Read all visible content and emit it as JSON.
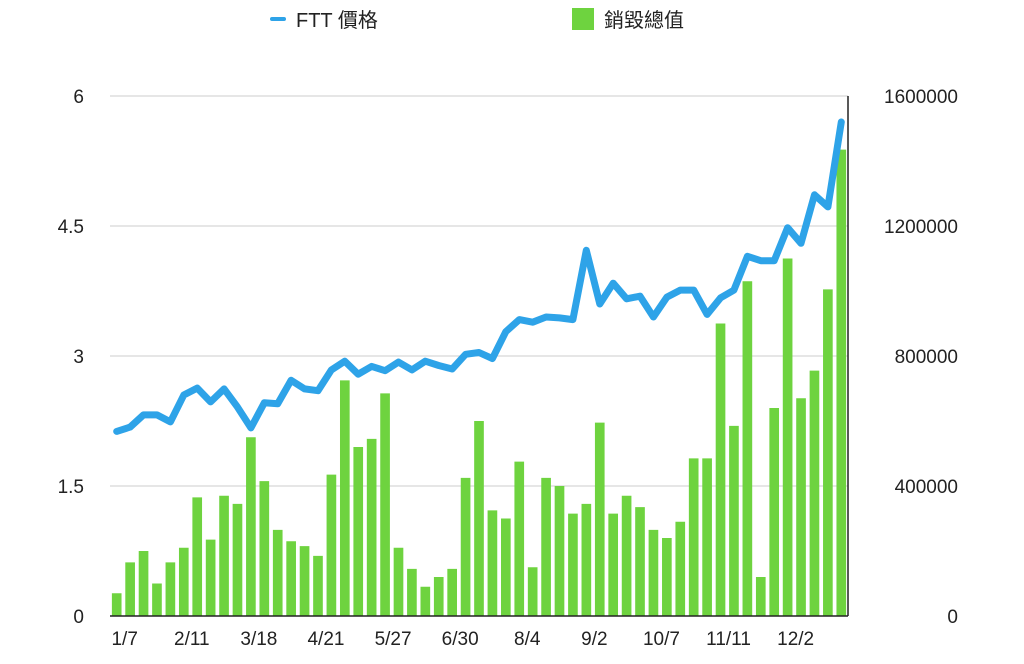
{
  "chart_data": {
    "type": "bar+line",
    "legend_placement": "top",
    "x_tick_labels": [
      "1/7",
      "2/11",
      "3/18",
      "4/21",
      "5/27",
      "6/30",
      "8/4",
      "9/2",
      "10/7",
      "11/11",
      "12/2"
    ],
    "x_tick_index": [
      0,
      5,
      10,
      15,
      20,
      25,
      30,
      35,
      40,
      45,
      50
    ],
    "left_axis": {
      "ticks": [
        "0",
        "1.5",
        "3",
        "4.5",
        "6"
      ],
      "ylim": [
        0,
        6
      ]
    },
    "right_axis": {
      "ticks": [
        "0",
        "400000",
        "800000",
        "1200000",
        "1600000"
      ],
      "ylim": [
        0,
        1600000
      ]
    },
    "grid": true,
    "series": [
      {
        "name": "FTT 價格",
        "type": "line",
        "axis": "left",
        "color": "#2ea3e8",
        "values": [
          2.13,
          2.18,
          2.32,
          2.32,
          2.24,
          2.55,
          2.63,
          2.47,
          2.62,
          2.41,
          2.17,
          2.46,
          2.45,
          2.72,
          2.62,
          2.6,
          2.84,
          2.94,
          2.79,
          2.88,
          2.83,
          2.93,
          2.84,
          2.94,
          2.89,
          2.85,
          3.02,
          3.04,
          2.97,
          3.28,
          3.42,
          3.39,
          3.45,
          3.44,
          3.42,
          4.22,
          3.6,
          3.84,
          3.66,
          3.69,
          3.45,
          3.68,
          3.76,
          3.76,
          3.48,
          3.67,
          3.76,
          4.15,
          4.1,
          4.1,
          4.48,
          4.3,
          4.86,
          4.72,
          5.7
        ]
      },
      {
        "name": "銷毀總值",
        "type": "bar",
        "axis": "right",
        "color": "#6ed33f",
        "values": [
          70000,
          165000,
          200000,
          100000,
          165000,
          210000,
          365000,
          235000,
          370000,
          345000,
          550000,
          415000,
          265000,
          230000,
          215000,
          185000,
          435000,
          725000,
          520000,
          545000,
          685000,
          210000,
          145000,
          90000,
          120000,
          145000,
          425000,
          600000,
          325000,
          300000,
          475000,
          150000,
          425000,
          400000,
          315000,
          345000,
          595000,
          315000,
          370000,
          335000,
          265000,
          240000,
          290000,
          485000,
          485000,
          900000,
          585000,
          1030000,
          120000,
          640000,
          1100000,
          670000,
          755000,
          1005000,
          1435000
        ]
      }
    ]
  }
}
